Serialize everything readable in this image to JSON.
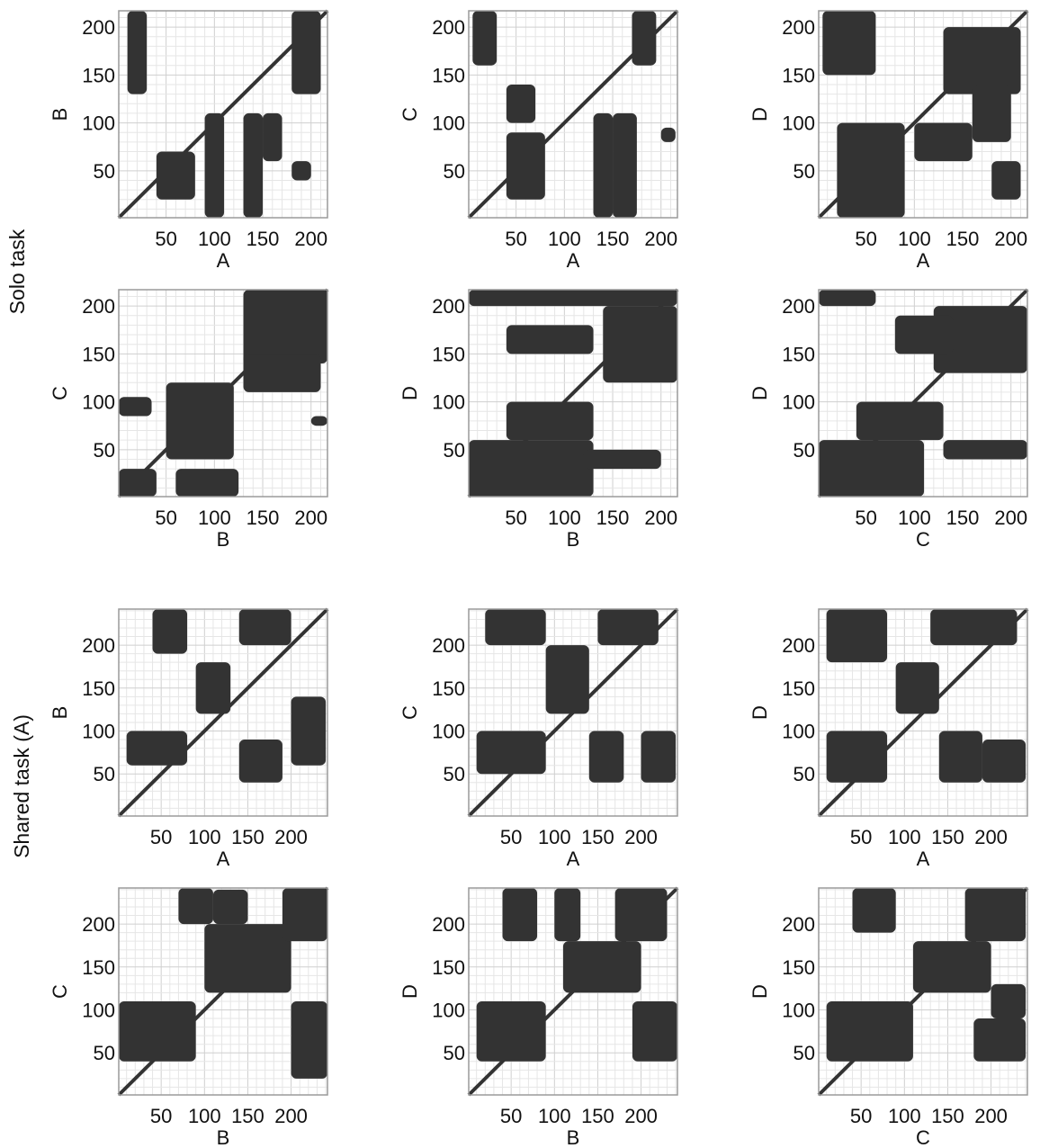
{
  "figure": {
    "row_group_labels": [
      "Solo task",
      "Shared task (A)"
    ]
  },
  "chart_data": [
    {
      "type": "heatmap",
      "group": "Solo task",
      "xlabel": "A",
      "ylabel": "B",
      "xticks": [
        50,
        100,
        150,
        200
      ],
      "yticks": [
        50,
        100,
        150,
        200
      ],
      "xlim": [
        1,
        217
      ],
      "ylim": [
        1,
        217
      ],
      "grid": true,
      "color": "#333333",
      "regions": [
        [
          10,
          30,
          130,
          217
        ],
        [
          180,
          210,
          130,
          217
        ],
        [
          40,
          80,
          20,
          70
        ],
        [
          90,
          110,
          1,
          110
        ],
        [
          130,
          150,
          1,
          110
        ],
        [
          150,
          170,
          60,
          110
        ],
        [
          180,
          200,
          40,
          60
        ]
      ]
    },
    {
      "type": "heatmap",
      "group": "Solo task",
      "xlabel": "A",
      "ylabel": "C",
      "xticks": [
        50,
        100,
        150,
        200
      ],
      "yticks": [
        50,
        100,
        150,
        200
      ],
      "xlim": [
        1,
        217
      ],
      "ylim": [
        1,
        217
      ],
      "grid": true,
      "color": "#333333",
      "regions": [
        [
          5,
          30,
          160,
          217
        ],
        [
          170,
          195,
          160,
          217
        ],
        [
          40,
          70,
          100,
          140
        ],
        [
          40,
          80,
          20,
          90
        ],
        [
          130,
          150,
          1,
          110
        ],
        [
          150,
          175,
          1,
          110
        ],
        [
          200,
          215,
          80,
          95
        ]
      ]
    },
    {
      "type": "heatmap",
      "group": "Solo task",
      "xlabel": "A",
      "ylabel": "D",
      "xticks": [
        50,
        100,
        150,
        200
      ],
      "yticks": [
        50,
        100,
        150,
        200
      ],
      "xlim": [
        1,
        217
      ],
      "ylim": [
        1,
        217
      ],
      "grid": true,
      "color": "#333333",
      "regions": [
        [
          5,
          60,
          150,
          217
        ],
        [
          130,
          210,
          130,
          200
        ],
        [
          20,
          90,
          1,
          100
        ],
        [
          100,
          160,
          60,
          100
        ],
        [
          180,
          210,
          20,
          60
        ],
        [
          160,
          200,
          80,
          140
        ]
      ]
    },
    {
      "type": "heatmap",
      "group": "Solo task",
      "xlabel": "B",
      "ylabel": "C",
      "xticks": [
        50,
        100,
        150,
        200
      ],
      "yticks": [
        50,
        100,
        150,
        200
      ],
      "xlim": [
        1,
        217
      ],
      "ylim": [
        1,
        217
      ],
      "grid": true,
      "color": "#333333",
      "regions": [
        [
          130,
          217,
          140,
          217
        ],
        [
          1,
          40,
          1,
          30
        ],
        [
          60,
          125,
          1,
          30
        ],
        [
          1,
          35,
          85,
          105
        ],
        [
          50,
          120,
          40,
          120
        ],
        [
          130,
          210,
          110,
          150
        ],
        [
          200,
          217,
          75,
          85
        ]
      ]
    },
    {
      "type": "heatmap",
      "group": "Solo task",
      "xlabel": "B",
      "ylabel": "D",
      "xticks": [
        50,
        100,
        150,
        200
      ],
      "yticks": [
        50,
        100,
        150,
        200
      ],
      "xlim": [
        1,
        217
      ],
      "ylim": [
        1,
        217
      ],
      "grid": true,
      "color": "#333333",
      "regions": [
        [
          40,
          130,
          60,
          100
        ],
        [
          1,
          130,
          1,
          60
        ],
        [
          140,
          217,
          120,
          200
        ],
        [
          120,
          200,
          30,
          50
        ],
        [
          40,
          130,
          150,
          180
        ],
        [
          1,
          217,
          200,
          217
        ]
      ]
    },
    {
      "type": "heatmap",
      "group": "Solo task",
      "xlabel": "C",
      "ylabel": "D",
      "xticks": [
        50,
        100,
        150,
        200
      ],
      "yticks": [
        50,
        100,
        150,
        200
      ],
      "xlim": [
        1,
        217
      ],
      "ylim": [
        1,
        217
      ],
      "grid": true,
      "color": "#333333",
      "regions": [
        [
          40,
          130,
          60,
          100
        ],
        [
          1,
          110,
          1,
          60
        ],
        [
          120,
          217,
          130,
          200
        ],
        [
          130,
          217,
          40,
          60
        ],
        [
          80,
          140,
          150,
          190
        ],
        [
          1,
          60,
          200,
          217
        ]
      ]
    },
    {
      "type": "heatmap",
      "group": "Shared task (A)",
      "xlabel": "A",
      "ylabel": "B",
      "xticks": [
        50,
        100,
        150,
        200
      ],
      "yticks": [
        50,
        100,
        150,
        200
      ],
      "xlim": [
        1,
        242
      ],
      "ylim": [
        1,
        242
      ],
      "grid": true,
      "color": "#333333",
      "regions": [
        [
          90,
          130,
          120,
          180
        ],
        [
          140,
          190,
          40,
          90
        ],
        [
          40,
          80,
          190,
          242
        ],
        [
          140,
          200,
          200,
          242
        ],
        [
          10,
          80,
          60,
          100
        ],
        [
          200,
          240,
          60,
          140
        ]
      ]
    },
    {
      "type": "heatmap",
      "group": "Shared task (A)",
      "xlabel": "A",
      "ylabel": "C",
      "xticks": [
        50,
        100,
        150,
        200
      ],
      "yticks": [
        50,
        100,
        150,
        200
      ],
      "xlim": [
        1,
        242
      ],
      "ylim": [
        1,
        242
      ],
      "grid": true,
      "color": "#333333",
      "regions": [
        [
          90,
          140,
          120,
          200
        ],
        [
          140,
          180,
          40,
          100
        ],
        [
          20,
          90,
          200,
          242
        ],
        [
          150,
          220,
          200,
          242
        ],
        [
          10,
          90,
          50,
          100
        ],
        [
          200,
          240,
          40,
          100
        ]
      ]
    },
    {
      "type": "heatmap",
      "group": "Shared task (A)",
      "xlabel": "A",
      "ylabel": "D",
      "xticks": [
        50,
        100,
        150,
        200
      ],
      "yticks": [
        50,
        100,
        150,
        200
      ],
      "xlim": [
        1,
        242
      ],
      "ylim": [
        1,
        242
      ],
      "grid": true,
      "color": "#333333",
      "regions": [
        [
          90,
          140,
          120,
          180
        ],
        [
          140,
          190,
          40,
          100
        ],
        [
          10,
          80,
          40,
          100
        ],
        [
          10,
          80,
          180,
          242
        ],
        [
          130,
          230,
          200,
          242
        ],
        [
          190,
          240,
          40,
          90
        ]
      ]
    },
    {
      "type": "heatmap",
      "group": "Shared task (A)",
      "xlabel": "B",
      "ylabel": "C",
      "xticks": [
        50,
        100,
        150,
        200
      ],
      "yticks": [
        50,
        100,
        150,
        200
      ],
      "xlim": [
        1,
        242
      ],
      "ylim": [
        1,
        242
      ],
      "grid": true,
      "color": "#333333",
      "regions": [
        [
          100,
          200,
          120,
          200
        ],
        [
          1,
          90,
          40,
          110
        ],
        [
          190,
          242,
          180,
          242
        ],
        [
          200,
          242,
          20,
          110
        ],
        [
          70,
          110,
          200,
          242
        ],
        [
          110,
          150,
          200,
          240
        ]
      ]
    },
    {
      "type": "heatmap",
      "group": "Shared task (A)",
      "xlabel": "B",
      "ylabel": "D",
      "xticks": [
        50,
        100,
        150,
        200
      ],
      "yticks": [
        50,
        100,
        150,
        200
      ],
      "xlim": [
        1,
        242
      ],
      "ylim": [
        1,
        242
      ],
      "grid": true,
      "color": "#333333",
      "regions": [
        [
          110,
          200,
          120,
          180
        ],
        [
          10,
          90,
          40,
          110
        ],
        [
          190,
          242,
          40,
          110
        ],
        [
          40,
          80,
          180,
          242
        ],
        [
          170,
          230,
          180,
          242
        ],
        [
          100,
          130,
          180,
          242
        ]
      ]
    },
    {
      "type": "heatmap",
      "group": "Shared task (A)",
      "xlabel": "C",
      "ylabel": "D",
      "xticks": [
        50,
        100,
        150,
        200
      ],
      "yticks": [
        50,
        100,
        150,
        200
      ],
      "xlim": [
        1,
        242
      ],
      "ylim": [
        1,
        242
      ],
      "grid": true,
      "color": "#333333",
      "regions": [
        [
          110,
          200,
          120,
          180
        ],
        [
          10,
          110,
          40,
          110
        ],
        [
          180,
          240,
          40,
          90
        ],
        [
          40,
          90,
          190,
          242
        ],
        [
          170,
          240,
          180,
          242
        ],
        [
          200,
          240,
          90,
          130
        ]
      ]
    }
  ]
}
